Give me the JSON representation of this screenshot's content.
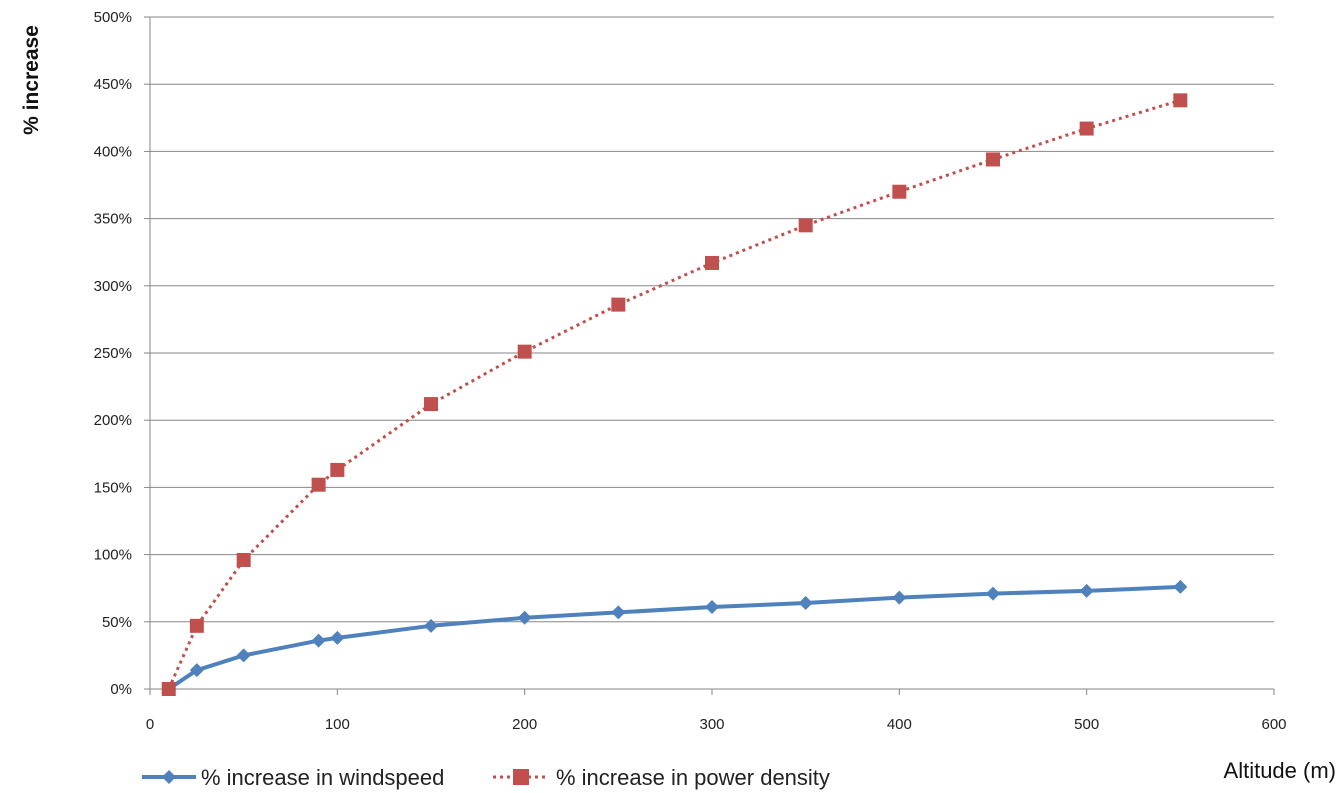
{
  "chart_data": {
    "type": "line",
    "ylabel": "% increase",
    "xlabel": "Altitude (m)",
    "xlim": [
      0,
      600
    ],
    "ylim": [
      0,
      500
    ],
    "x_ticks": [
      "0",
      "100",
      "200",
      "300",
      "400",
      "500",
      "600"
    ],
    "y_ticks": [
      "0%",
      "50%",
      "100%",
      "150%",
      "200%",
      "250%",
      "300%",
      "350%",
      "400%",
      "450%",
      "500%"
    ],
    "grid": "horizontal",
    "legend_position": "bottom-left",
    "series": [
      {
        "name": "% increase in windspeed",
        "color": "#4f81bd",
        "marker": "diamond",
        "line_style": "solid",
        "x": [
          10,
          25,
          50,
          90,
          100,
          150,
          200,
          250,
          300,
          350,
          400,
          450,
          500,
          550
        ],
        "values": [
          0,
          14,
          25,
          36,
          38,
          47,
          53,
          57,
          61,
          64,
          68,
          71,
          73,
          76
        ]
      },
      {
        "name": "% increase in power density",
        "color": "#c0504d",
        "marker": "square",
        "line_style": "dotted",
        "x": [
          10,
          25,
          50,
          90,
          100,
          150,
          200,
          250,
          300,
          350,
          400,
          450,
          500,
          550
        ],
        "values": [
          0,
          47,
          96,
          152,
          163,
          212,
          251,
          286,
          317,
          345,
          370,
          394,
          417,
          438
        ]
      }
    ]
  }
}
